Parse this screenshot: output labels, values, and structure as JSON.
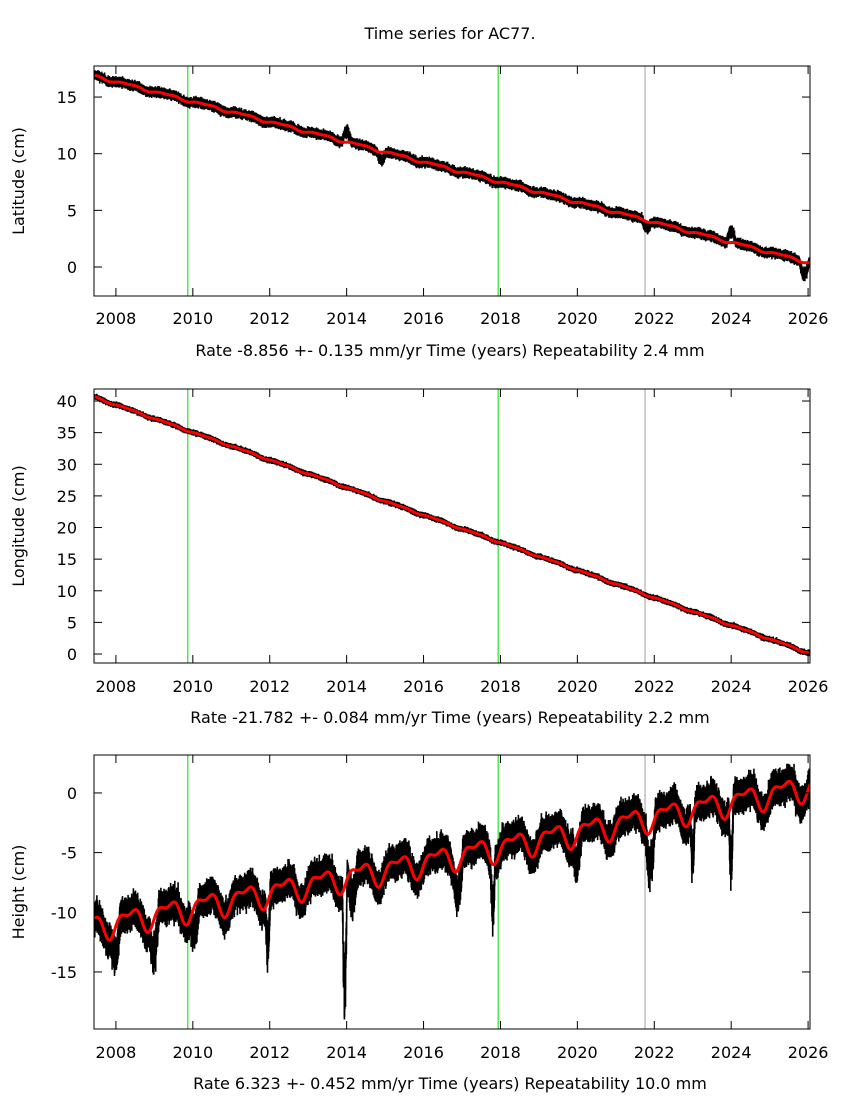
{
  "title": "Time series for AC77.",
  "colors": {
    "data": "#000000",
    "fit": "#ff0000",
    "event_green": "#00dd00",
    "event_gray": "#a0a0a0"
  },
  "chart_data": [
    {
      "type": "scatter",
      "ylabel": "Latitude (cm)",
      "xlabel": "Time (years)",
      "rate_text": "Rate -8.856 +- 0.135 mm/yr",
      "repeat_text": "Repeatability 2.4 mm",
      "xlim": [
        2007.43,
        2026.05
      ],
      "ylim": [
        -2.56,
        17.74
      ],
      "xticks": [
        "2008",
        "2010",
        "2012",
        "2014",
        "2016",
        "2018",
        "2020",
        "2022",
        "2024",
        "2026"
      ],
      "yticks": [
        "0",
        "5",
        "10",
        "15"
      ],
      "fit": {
        "t0": 2007.5,
        "y0": 16.8,
        "rate_cm_per_yr": -0.8856,
        "annual_amp": 0.1,
        "semiannual_amp": 0.05
      },
      "scatter_cm": 0.35,
      "anomalies": [
        {
          "t": 2014.0,
          "dy": 1.2
        },
        {
          "t": 2014.9,
          "dy": -0.8
        },
        {
          "t": 2021.8,
          "dy": -0.7
        },
        {
          "t": 2024.0,
          "dy": 1.2
        },
        {
          "t": 2025.9,
          "dy": -1.3
        }
      ],
      "event_lines": [
        {
          "t": 2009.87,
          "kind": "green"
        },
        {
          "t": 2017.94,
          "kind": "green"
        },
        {
          "t": 2021.76,
          "kind": "gray"
        }
      ]
    },
    {
      "type": "scatter",
      "ylabel": "Longitude (cm)",
      "xlabel": "Time (years)",
      "rate_text": "Rate -21.782 +- 0.084 mm/yr",
      "repeat_text": "Repeatability 2.2 mm",
      "xlim": [
        2007.43,
        2026.05
      ],
      "ylim": [
        -1.42,
        41.9
      ],
      "xticks": [
        "2008",
        "2010",
        "2012",
        "2014",
        "2016",
        "2018",
        "2020",
        "2022",
        "2024",
        "2026"
      ],
      "yticks": [
        "0",
        "5",
        "10",
        "15",
        "20",
        "25",
        "30",
        "35",
        "40"
      ],
      "fit": {
        "t0": 2007.5,
        "y0": 40.5,
        "rate_cm_per_yr": -2.1782,
        "annual_amp": 0.1,
        "semiannual_amp": 0.05
      },
      "scatter_cm": 0.35,
      "anomalies": [],
      "event_lines": [
        {
          "t": 2009.87,
          "kind": "green"
        },
        {
          "t": 2017.94,
          "kind": "green"
        },
        {
          "t": 2021.76,
          "kind": "gray"
        }
      ]
    },
    {
      "type": "scatter",
      "ylabel": "Height (cm)",
      "xlabel": "Time (years)",
      "rate_text": "Rate 6.323 +- 0.452 mm/yr",
      "repeat_text": "Repeatability 10.0 mm",
      "xlim": [
        2007.43,
        2026.05
      ],
      "ylim": [
        -19.78,
        3.18
      ],
      "xticks": [
        "2008",
        "2010",
        "2012",
        "2014",
        "2016",
        "2018",
        "2020",
        "2022",
        "2024",
        "2026"
      ],
      "yticks": [
        "-15",
        "-10",
        "-5",
        "0"
      ],
      "fit": {
        "t0": 2007.5,
        "y0": -11.2,
        "rate_cm_per_yr": 0.6323,
        "annual_amp": 0.9,
        "semiannual_amp": 0.45
      },
      "scatter_cm": 1.1,
      "anomalies": [
        {
          "t": 2008.0,
          "dy": -3.0
        },
        {
          "t": 2009.0,
          "dy": -3.5
        },
        {
          "t": 2010.05,
          "dy": -2.5
        },
        {
          "t": 2011.95,
          "dy": -4.5
        },
        {
          "t": 2013.95,
          "dy": -10.5
        },
        {
          "t": 2014.15,
          "dy": -3
        },
        {
          "t": 2016.9,
          "dy": -2.5
        },
        {
          "t": 2017.8,
          "dy": -4.5
        },
        {
          "t": 2020.0,
          "dy": -2.5
        },
        {
          "t": 2021.9,
          "dy": -4.0
        },
        {
          "t": 2023.0,
          "dy": -5.0
        },
        {
          "t": 2024.0,
          "dy": -6.0
        }
      ],
      "event_lines": [
        {
          "t": 2009.87,
          "kind": "green"
        },
        {
          "t": 2017.94,
          "kind": "green"
        },
        {
          "t": 2021.76,
          "kind": "gray"
        }
      ]
    }
  ]
}
